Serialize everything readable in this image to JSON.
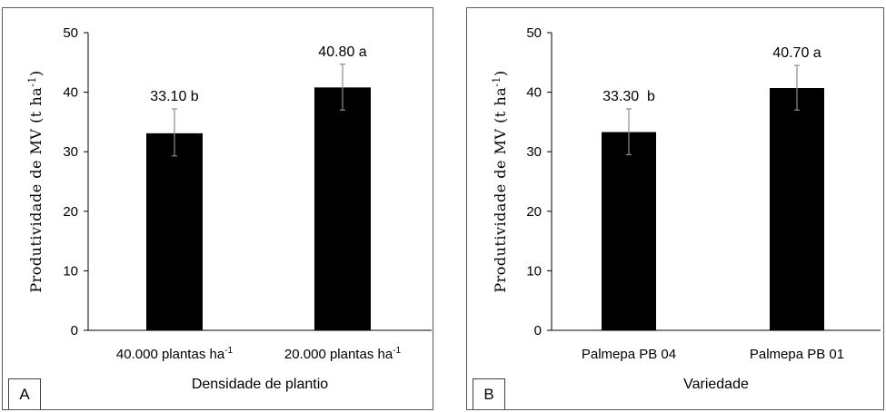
{
  "chart_data": [
    {
      "type": "bar",
      "panel_tag": "A",
      "xlabel": "Densidade de plantio",
      "ylabel": "Produtividade de MV (t ha",
      "ylabel_sup": "-1",
      "ylabel_close": ")",
      "ylim": [
        0,
        50
      ],
      "yticks": [
        0,
        10,
        20,
        30,
        40,
        50
      ],
      "grid": false,
      "categories": [
        {
          "text": "40.000 plantas ha",
          "sup": "-1"
        },
        {
          "text": "20.000 plantas ha",
          "sup": "-1"
        }
      ],
      "values": [
        33.1,
        40.8
      ],
      "error_high": [
        37.2,
        44.7
      ],
      "error_low": [
        29.3,
        37.0
      ],
      "data_labels": [
        "33.10 b",
        "40.80 a"
      ],
      "bar_color": "#000000",
      "error_color": "#8c8c8c"
    },
    {
      "type": "bar",
      "panel_tag": "B",
      "xlabel": "Variedade",
      "ylabel": "Produtividade de MV (t ha",
      "ylabel_sup": "-1",
      "ylabel_close": ")",
      "ylim": [
        0,
        50
      ],
      "yticks": [
        0,
        10,
        20,
        30,
        40,
        50
      ],
      "grid": false,
      "categories": [
        {
          "text": "Palmepa PB 04",
          "sup": ""
        },
        {
          "text": "Palmepa PB 01",
          "sup": ""
        }
      ],
      "values": [
        33.3,
        40.7
      ],
      "error_high": [
        37.2,
        44.5
      ],
      "error_low": [
        29.5,
        37.0
      ],
      "data_labels": [
        "33.30  b",
        "40.70 a"
      ],
      "bar_color": "#000000",
      "error_color": "#8c8c8c"
    }
  ]
}
